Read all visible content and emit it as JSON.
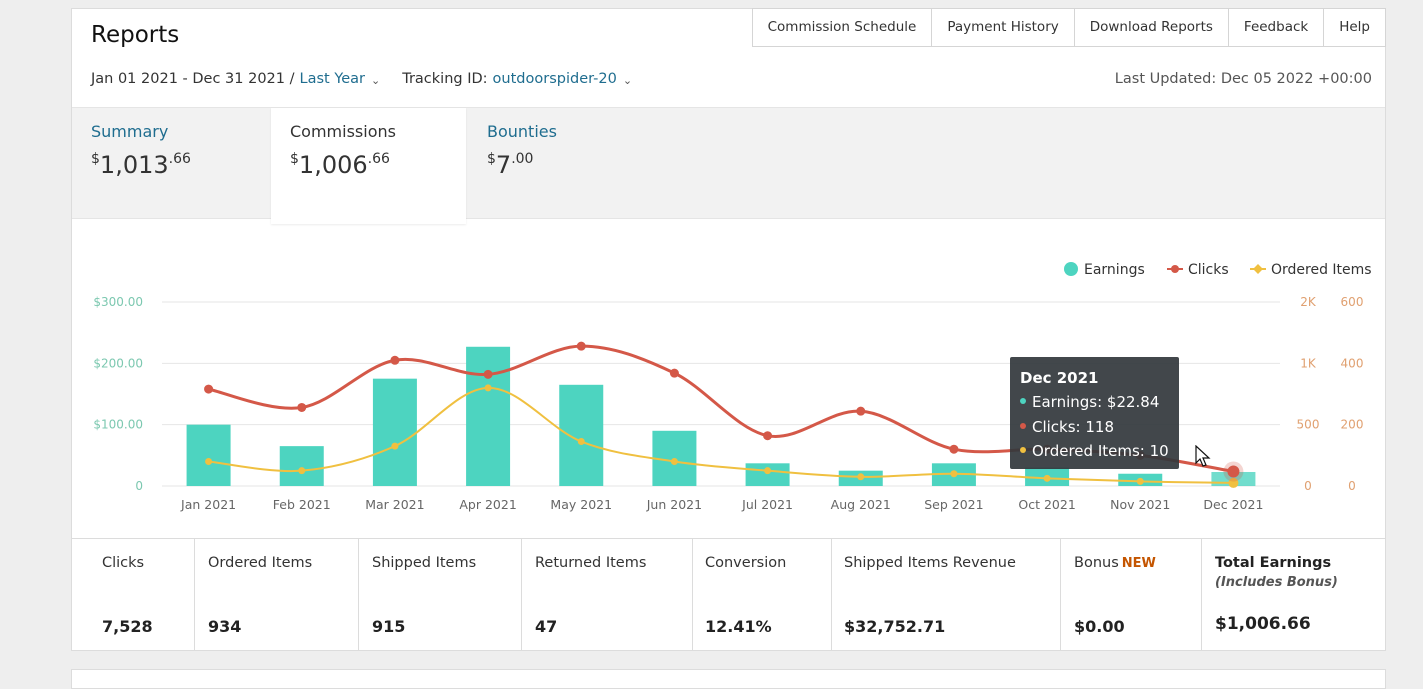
{
  "header": {
    "title": "Reports",
    "nav": [
      "Commission Schedule",
      "Payment History",
      "Download Reports",
      "Feedback",
      "Help"
    ]
  },
  "filters": {
    "date_range": "Jan 01 2021 - Dec 31 2021 /",
    "period": "Last Year",
    "tracking_label": "Tracking ID:",
    "tracking_id": "outdoorspider-20",
    "last_updated": "Last Updated: Dec 05 2022 +00:00"
  },
  "tabs": [
    {
      "label": "Summary",
      "currency": "$",
      "whole": "1,013",
      "cents": ".66"
    },
    {
      "label": "Commissions",
      "currency": "$",
      "whole": "1,006",
      "cents": ".66"
    },
    {
      "label": "Bounties",
      "currency": "$",
      "whole": "7",
      "cents": ".00"
    }
  ],
  "stats": [
    {
      "label": "Clicks",
      "value": "7,528"
    },
    {
      "label": "Ordered Items",
      "value": "934"
    },
    {
      "label": "Shipped Items",
      "value": "915"
    },
    {
      "label": "Returned Items",
      "value": "47"
    },
    {
      "label": "Conversion",
      "value": "12.41%"
    },
    {
      "label": "Shipped Items Revenue",
      "value": "$32,752.71"
    },
    {
      "label": "Bonus",
      "badge": "NEW",
      "value": "$0.00"
    },
    {
      "label": "Total Earnings",
      "sub": "(Includes Bonus)",
      "value": "$1,006.66"
    }
  ],
  "tooltip": {
    "title": "Dec 2021",
    "earnings": "Earnings: $22.84",
    "clicks": "Clicks: 118",
    "ordered": "Ordered Items: 10"
  },
  "colors": {
    "earnings": "#4dd4c0",
    "clicks": "#d45848",
    "ordered": "#f0c040",
    "link": "#1f6d8f",
    "left_axis": "#7cc8b0",
    "right_axis": "#e0a070"
  },
  "chart_data": {
    "type": "bar",
    "categories": [
      "Jan 2021",
      "Feb 2021",
      "Mar 2021",
      "Apr 2021",
      "May 2021",
      "Jun 2021",
      "Jul 2021",
      "Aug 2021",
      "Sep 2021",
      "Oct 2021",
      "Nov 2021",
      "Dec 2021"
    ],
    "legend": [
      "Earnings",
      "Clicks",
      "Ordered Items"
    ],
    "legend_position": "top-right",
    "series": [
      {
        "name": "Earnings",
        "kind": "bar",
        "axis": "left",
        "values": [
          100,
          65,
          175,
          227,
          165,
          90,
          37,
          25,
          37,
          30,
          20,
          22.84
        ]
      },
      {
        "name": "Clicks",
        "kind": "line",
        "axis": "right1",
        "values": [
          790,
          640,
          1050,
          910,
          1280,
          920,
          410,
          610,
          300,
          300,
          250,
          118
        ]
      },
      {
        "name": "Ordered Items",
        "kind": "line",
        "axis": "right2",
        "values": [
          80,
          50,
          130,
          320,
          145,
          80,
          50,
          30,
          40,
          25,
          15,
          10
        ]
      }
    ],
    "y_left": {
      "ticks": [
        "0",
        "$100.00",
        "$200.00",
        "$300.00"
      ],
      "range": [
        0,
        300
      ]
    },
    "y_right1": {
      "ticks": [
        "0",
        "500",
        "1K",
        "2K"
      ],
      "range": [
        0,
        2000
      ]
    },
    "y_right2": {
      "ticks": [
        "0",
        "200",
        "400",
        "600"
      ],
      "range": [
        0,
        600
      ]
    },
    "grid": true
  }
}
